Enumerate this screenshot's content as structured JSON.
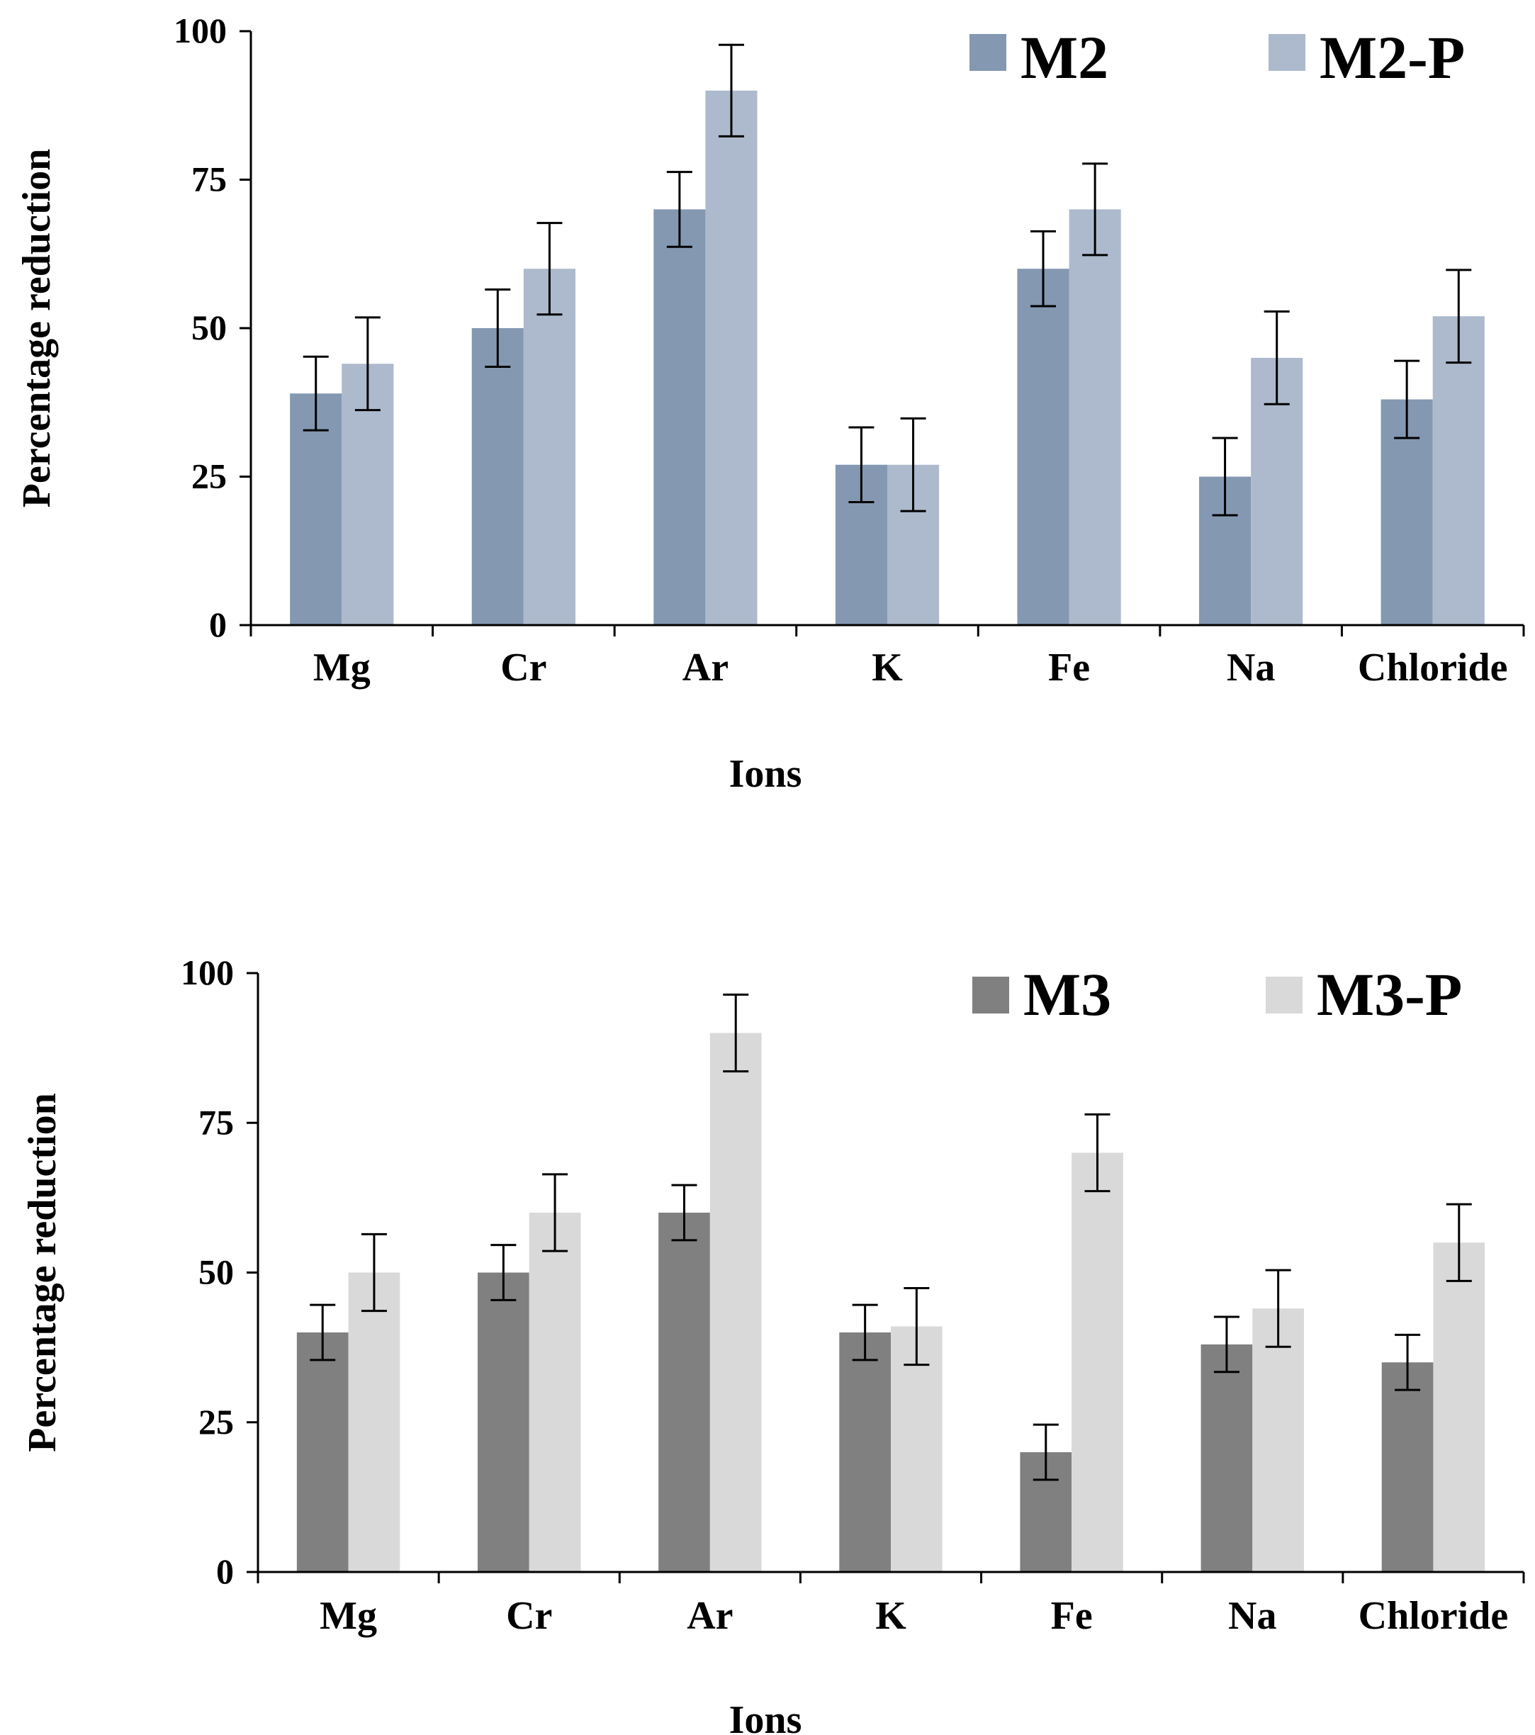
{
  "chart_data": [
    {
      "type": "bar",
      "categories": [
        "Mg",
        "Cr",
        "Ar",
        "K",
        "Fe",
        "Na",
        "Chloride"
      ],
      "series": [
        {
          "name": "M2",
          "color": "#8498b2",
          "values": [
            39,
            50,
            70,
            27,
            60,
            25,
            38
          ],
          "errors": [
            6.2,
            6.5,
            6.3,
            6.3,
            6.3,
            6.5,
            6.5
          ]
        },
        {
          "name": "M2-P",
          "color": "#adbacd",
          "values": [
            44,
            60,
            90,
            27,
            70,
            45,
            52
          ],
          "errors": [
            7.8,
            7.7,
            7.7,
            7.8,
            7.7,
            7.8,
            7.8
          ]
        }
      ],
      "xlabel": "Ions",
      "ylabel": "Percentage reduction",
      "ylim": [
        0,
        100
      ],
      "yticks": [
        0,
        25,
        50,
        75,
        100
      ],
      "legend_position": "top-right"
    },
    {
      "type": "bar",
      "categories": [
        "Mg",
        "Cr",
        "Ar",
        "K",
        "Fe",
        "Na",
        "Chloride"
      ],
      "series": [
        {
          "name": "M3",
          "color": "#808080",
          "values": [
            40,
            50,
            60,
            40,
            20,
            38,
            35
          ],
          "errors": [
            4.6,
            4.6,
            4.6,
            4.6,
            4.6,
            4.6,
            4.6
          ]
        },
        {
          "name": "M3-P",
          "color": "#d9d9d9",
          "values": [
            50,
            60,
            90,
            41,
            70,
            44,
            55
          ],
          "errors": [
            6.4,
            6.4,
            6.4,
            6.4,
            6.4,
            6.4,
            6.4
          ]
        }
      ],
      "xlabel": "Ions",
      "ylabel": "Percentage reduction",
      "ylim": [
        0,
        100
      ],
      "yticks": [
        0,
        25,
        50,
        75,
        100
      ],
      "legend_position": "top-right"
    }
  ]
}
